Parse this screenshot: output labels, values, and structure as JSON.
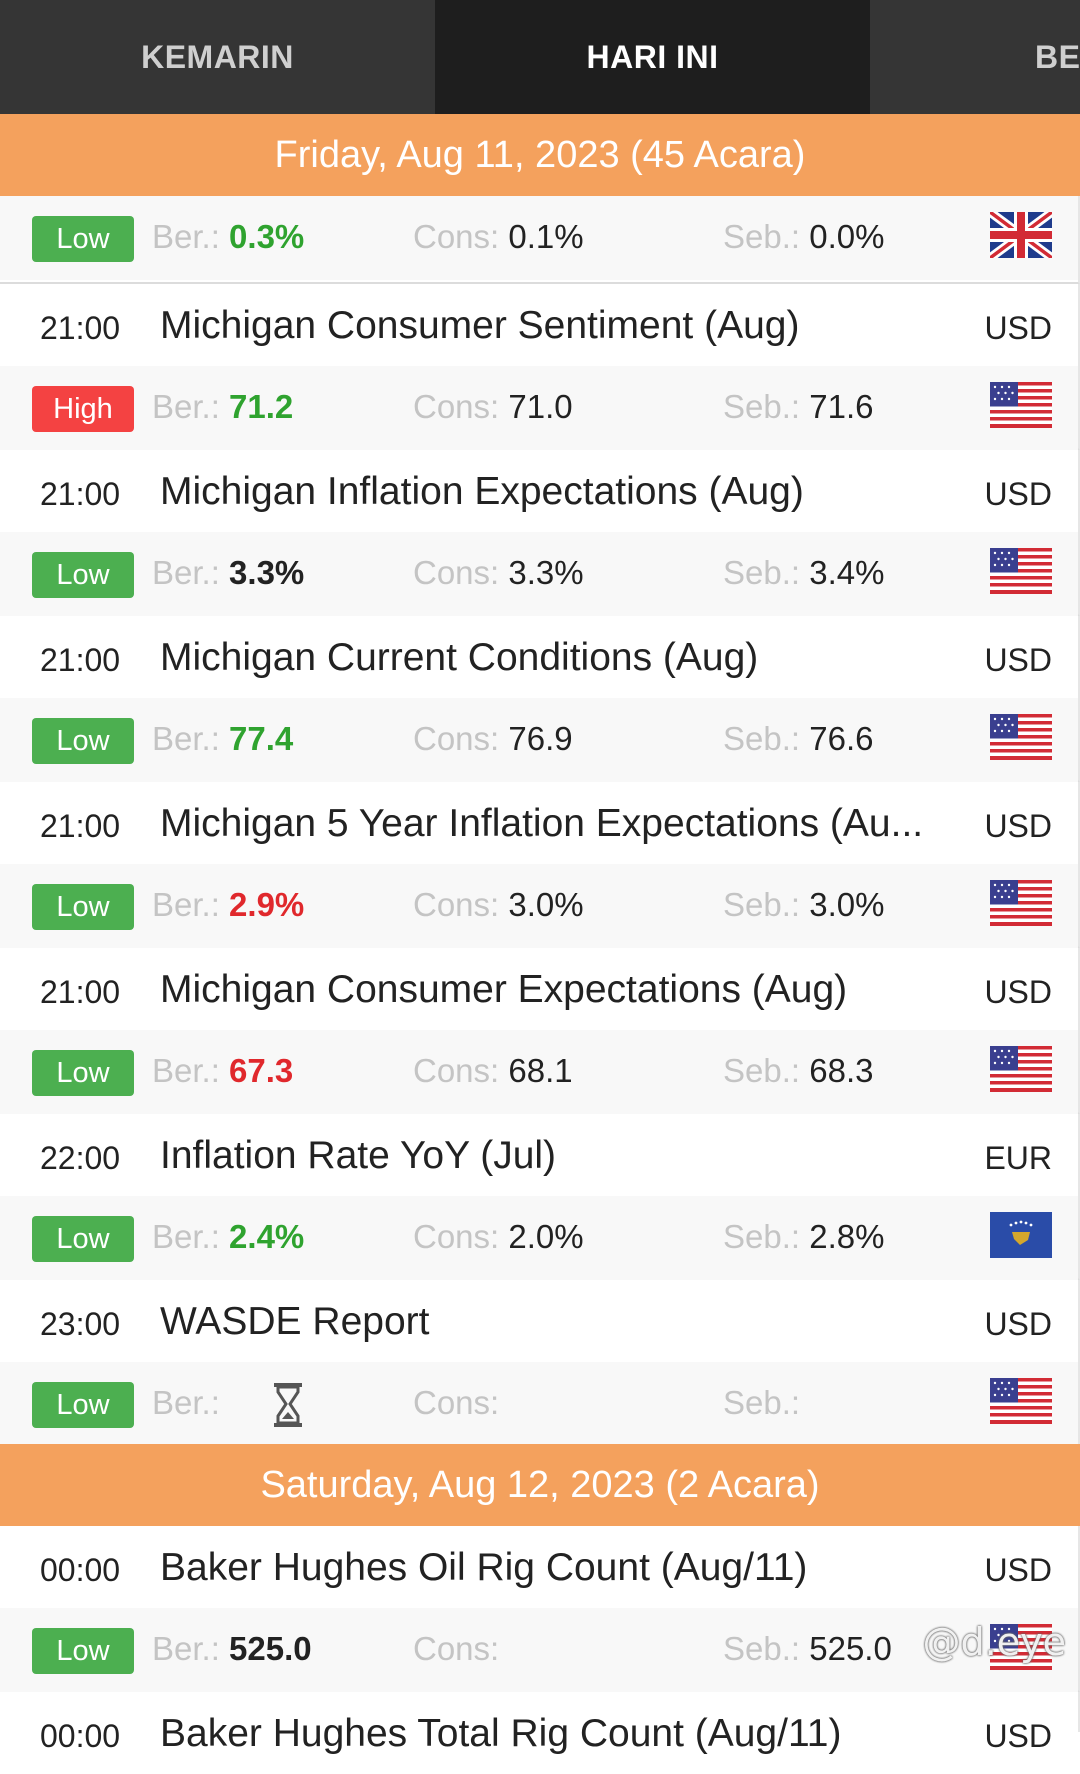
{
  "tabs": [
    {
      "label": "KEMARIN"
    },
    {
      "label": "HARI INI"
    },
    {
      "label": "BES"
    }
  ],
  "days": [
    {
      "header": "Friday, Aug 11, 2023 (45 Acara)"
    },
    {
      "header": "Saturday, Aug 12, 2023 (2 Acara)"
    }
  ],
  "labels": {
    "actual": "Ber.:",
    "consensus": "Cons:",
    "previous": "Seb.:"
  },
  "colors": {
    "accent_orange": "#f4a15d",
    "low": "#4caf50",
    "high": "#f44242",
    "better": "#2fa32f",
    "worse": "#e0282c"
  },
  "events": [
    {
      "time": "",
      "title": "",
      "currency": "",
      "impact": "Low",
      "actual": "0.3%",
      "consensus": "0.1%",
      "previous": "0.0%",
      "flag": "uk-flag-icon"
    },
    {
      "time": "21:00",
      "title": "Michigan Consumer Sentiment (Aug)",
      "currency": "USD",
      "impact": "High",
      "actual": "71.2",
      "consensus": "71.0",
      "previous": "71.6",
      "flag": "us-flag-icon"
    },
    {
      "time": "21:00",
      "title": "Michigan Inflation Expectations (Aug)",
      "currency": "USD",
      "impact": "Low",
      "actual": "3.3%",
      "consensus": "3.3%",
      "previous": "3.4%",
      "flag": "us-flag-icon"
    },
    {
      "time": "21:00",
      "title": "Michigan Current Conditions (Aug)",
      "currency": "USD",
      "impact": "Low",
      "actual": "77.4",
      "consensus": "76.9",
      "previous": "76.6",
      "flag": "us-flag-icon"
    },
    {
      "time": "21:00",
      "title": "Michigan 5 Year Inflation Expectations (Au...",
      "currency": "USD",
      "impact": "Low",
      "actual": "2.9%",
      "consensus": "3.0%",
      "previous": "3.0%",
      "flag": "us-flag-icon"
    },
    {
      "time": "21:00",
      "title": "Michigan Consumer Expectations (Aug)",
      "currency": "USD",
      "impact": "Low",
      "actual": "67.3",
      "consensus": "68.1",
      "previous": "68.3",
      "flag": "us-flag-icon"
    },
    {
      "time": "22:00",
      "title": "Inflation Rate YoY (Jul)",
      "currency": "EUR",
      "impact": "Low",
      "actual": "2.4%",
      "consensus": "2.0%",
      "previous": "2.8%",
      "flag": "kosovo-flag-icon"
    },
    {
      "time": "23:00",
      "title": "WASDE Report",
      "currency": "USD",
      "impact": "Low",
      "actual": "",
      "consensus": "",
      "previous": "",
      "flag": "us-flag-icon"
    },
    {
      "time": "00:00",
      "title": "Baker Hughes Oil Rig Count (Aug/11)",
      "currency": "USD",
      "impact": "Low",
      "actual": "525.0",
      "consensus": "",
      "previous": "525.0",
      "flag": "us-flag-icon"
    },
    {
      "time": "00:00",
      "title": "Baker Hughes Total Rig Count (Aug/11)",
      "currency": "USD",
      "impact": "",
      "actual": "",
      "consensus": "",
      "previous": "",
      "flag": ""
    }
  ],
  "watermark": "@d.eye"
}
